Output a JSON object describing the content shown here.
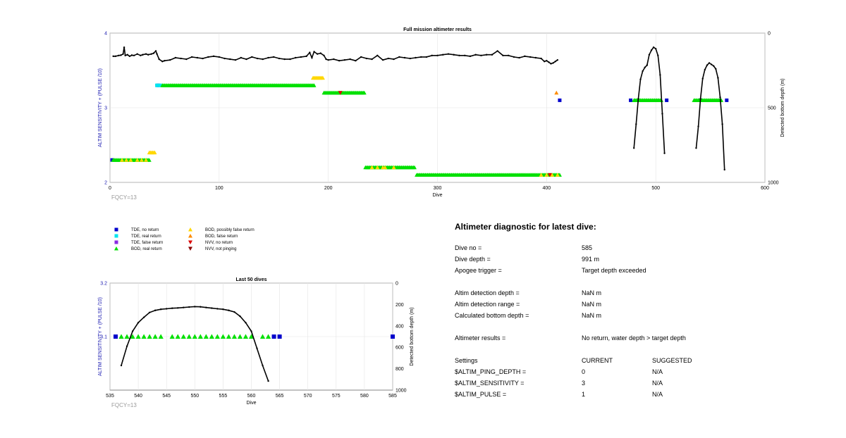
{
  "chart_data": [
    {
      "type": "scatter",
      "title": "Full mission altimeter results",
      "xlabel": "Dive",
      "ylabel": "ALTIM SENSITIVITY + (PULSE /10)",
      "y2label": "Detected bottom depth (m)",
      "xlim": [
        0,
        600
      ],
      "ylim": [
        2,
        4
      ],
      "y2lim": [
        0,
        1000
      ],
      "y2_reversed": true,
      "xticks": [
        "0",
        "100",
        "200",
        "300",
        "400",
        "500",
        "600"
      ],
      "yticks": [
        "2",
        "3",
        "4"
      ],
      "y2ticks": [
        "0",
        "500",
        "1000"
      ],
      "grid": true,
      "footnote": "FQCY=13",
      "series": [
        {
          "name": "TDE, no return",
          "color": "#0000cc",
          "marker": "square",
          "x": [
            2,
            44,
            412,
            477,
            510,
            541,
            565
          ],
          "y": [
            2.3,
            3.3,
            3.1,
            3.1,
            3.1,
            3.1,
            3.1
          ]
        },
        {
          "name": "TDE, real return",
          "color": "#00e5ee",
          "marker": "square",
          "x": [
            43,
            46
          ],
          "y": [
            3.3,
            3.3
          ]
        },
        {
          "name": "BOD, real return",
          "color": "#00e000",
          "marker": "triangle-up",
          "ranges": [
            [
              3,
              36,
              2.3
            ],
            [
              48,
              187,
              3.3
            ],
            [
              196,
              233,
              3.2
            ],
            [
              234,
              279,
              2.2
            ],
            [
              281,
              412,
              2.1
            ],
            [
              480,
              505,
              3.1
            ],
            [
              535,
              560,
              3.1
            ]
          ]
        },
        {
          "name": "BOD, possibly false return",
          "color": "#ffd700",
          "marker": "triangle-up",
          "x": [
            36,
            37,
            38,
            39,
            40,
            41,
            186,
            187,
            188,
            189,
            190,
            191,
            192,
            193,
            194,
            195,
            11,
            15,
            19,
            25,
            29,
            33,
            240,
            245,
            250,
            252,
            260,
            395,
            400,
            405,
            410
          ],
          "y": [
            2.4,
            2.4,
            2.4,
            2.4,
            2.4,
            2.4,
            3.4,
            3.4,
            3.4,
            3.4,
            3.4,
            3.4,
            3.4,
            3.4,
            3.4,
            3.4,
            2.3,
            2.3,
            2.3,
            2.3,
            2.3,
            2.3,
            2.2,
            2.2,
            2.2,
            2.2,
            2.2,
            2.1,
            2.1,
            2.1,
            2.1
          ]
        },
        {
          "name": "BOD, false return",
          "color": "#ff8c00",
          "marker": "triangle-up",
          "x": [
            409
          ],
          "y": [
            3.2
          ]
        },
        {
          "name": "NVV, no return",
          "color": "#dd0000",
          "marker": "triangle-down",
          "x": [
            211,
            403
          ],
          "y": [
            3.2,
            2.1
          ]
        },
        {
          "name": "Detected bottom depth",
          "color": "#000000",
          "marker": "dot",
          "axis": "y2",
          "x": [
            3,
            5,
            8,
            10,
            12,
            13,
            14,
            16,
            18,
            20,
            22,
            25,
            28,
            30,
            33,
            35,
            38,
            40,
            42,
            43,
            45,
            48,
            50,
            55,
            60,
            65,
            70,
            75,
            80,
            85,
            90,
            95,
            100,
            105,
            110,
            115,
            120,
            125,
            130,
            135,
            140,
            145,
            150,
            155,
            160,
            165,
            170,
            175,
            180,
            183,
            185,
            187,
            190,
            193,
            196,
            198,
            200,
            205,
            210,
            215,
            220,
            225,
            230,
            235,
            240,
            245,
            250,
            255,
            260,
            265,
            270,
            275,
            280,
            285,
            290,
            295,
            300,
            305,
            310,
            315,
            320,
            325,
            330,
            335,
            340,
            345,
            350,
            355,
            360,
            365,
            370,
            375,
            380,
            385,
            390,
            395,
            398,
            400,
            402,
            404,
            406,
            408,
            410
          ],
          "y": [
            155,
            155,
            150,
            148,
            140,
            95,
            150,
            145,
            155,
            148,
            150,
            140,
            150,
            145,
            140,
            145,
            140,
            135,
            120,
            140,
            175,
            190,
            185,
            180,
            165,
            170,
            175,
            160,
            165,
            170,
            160,
            155,
            160,
            170,
            175,
            180,
            165,
            175,
            160,
            170,
            175,
            165,
            160,
            170,
            175,
            175,
            165,
            160,
            155,
            130,
            165,
            125,
            140,
            135,
            150,
            175,
            180,
            175,
            185,
            180,
            175,
            185,
            160,
            170,
            175,
            150,
            180,
            170,
            175,
            160,
            165,
            170,
            165,
            160,
            160,
            150,
            150,
            145,
            140,
            145,
            150,
            150,
            155,
            145,
            150,
            145,
            145,
            120,
            150,
            150,
            160,
            165,
            155,
            160,
            165,
            170,
            190,
            185,
            195,
            205,
            200,
            190,
            180
          ]
        },
        {
          "name": "Detected bottom depth (last dives)",
          "color": "#000000",
          "marker": "dot",
          "axis": "y2",
          "x": [
            480,
            482,
            484,
            486,
            488,
            490,
            492,
            494,
            496,
            498,
            500,
            502,
            504,
            506,
            508,
            537,
            539,
            541,
            543,
            545,
            547,
            549,
            551,
            553,
            555,
            557,
            559,
            561,
            563
          ],
          "y": [
            770,
            610,
            440,
            310,
            255,
            230,
            215,
            145,
            115,
            95,
            105,
            150,
            280,
            540,
            805,
            770,
            625,
            440,
            305,
            245,
            215,
            200,
            210,
            220,
            240,
            300,
            430,
            610,
            915
          ]
        }
      ]
    },
    {
      "type": "scatter",
      "title": "Last 50 dives",
      "xlabel": "Dive",
      "ylabel": "ALTIM SENSITIVITY + (PULSE /10)",
      "y2label": "Detected bottom depth (m)",
      "xlim": [
        535,
        585
      ],
      "ylim": [
        3,
        3.2
      ],
      "y2lim": [
        0,
        1000
      ],
      "y2_reversed": true,
      "xticks": [
        "535",
        "540",
        "545",
        "550",
        "555",
        "560",
        "565",
        "570",
        "575",
        "580",
        "585"
      ],
      "yticks": [
        "3.1",
        "3.2"
      ],
      "y2ticks": [
        "0",
        "200",
        "400",
        "600",
        "800",
        "1000"
      ],
      "grid": true,
      "footnote": "FQCY=13",
      "series": [
        {
          "name": "TDE, no return",
          "color": "#0000cc",
          "marker": "square",
          "x": [
            536,
            564,
            565,
            585
          ],
          "y": [
            3.1,
            3.1,
            3.1,
            3.1
          ]
        },
        {
          "name": "BOD, real return",
          "color": "#00e000",
          "marker": "triangle-up",
          "x": [
            537,
            538,
            539,
            540,
            541,
            542,
            543,
            544,
            546,
            547,
            548,
            549,
            550,
            551,
            552,
            553,
            554,
            555,
            556,
            557,
            558,
            559,
            560,
            562,
            563
          ],
          "y": [
            3.1,
            3.1,
            3.1,
            3.1,
            3.1,
            3.1,
            3.1,
            3.1,
            3.1,
            3.1,
            3.1,
            3.1,
            3.1,
            3.1,
            3.1,
            3.1,
            3.1,
            3.1,
            3.1,
            3.1,
            3.1,
            3.1,
            3.1,
            3.1,
            3.1
          ]
        },
        {
          "name": "Detected bottom depth",
          "color": "#000000",
          "marker": "dot",
          "axis": "y2",
          "x": [
            537,
            538,
            539,
            540,
            541,
            542,
            543,
            544,
            545,
            546,
            547,
            548,
            549,
            550,
            551,
            552,
            553,
            554,
            555,
            556,
            557,
            558,
            559,
            560,
            561,
            562,
            563
          ],
          "y": [
            770,
            590,
            450,
            370,
            320,
            275,
            255,
            245,
            240,
            235,
            232,
            228,
            224,
            220,
            222,
            228,
            234,
            240,
            245,
            255,
            270,
            310,
            370,
            450,
            610,
            770,
            915
          ]
        }
      ]
    }
  ],
  "legend": [
    {
      "label": "TDE, no return",
      "color": "#0000cc",
      "marker": "square"
    },
    {
      "label": "TDE, real return",
      "color": "#00e5ee",
      "marker": "square"
    },
    {
      "label": "TDE, false return",
      "color": "#8a2be2",
      "marker": "square"
    },
    {
      "label": "BOD, real return",
      "color": "#00e000",
      "marker": "triangle-up"
    },
    {
      "label": "BOD, possibly false return",
      "color": "#ffd700",
      "marker": "triangle-up"
    },
    {
      "label": "BOD, false return",
      "color": "#ff8c00",
      "marker": "triangle-up"
    },
    {
      "label": "NVV, no return",
      "color": "#dd0000",
      "marker": "triangle-down"
    },
    {
      "label": "NVV, not pinging",
      "color": "#8b0000",
      "marker": "triangle-down"
    }
  ],
  "diagnostic": {
    "title": "Altimeter diagnostic for latest dive:",
    "rows": [
      {
        "label": "Dive no =",
        "value": "585"
      },
      {
        "label": "Dive depth =",
        "value": "991 m"
      },
      {
        "label": "Apogee trigger =",
        "value": "Target depth exceeded"
      },
      {
        "label": "Altim detection depth =",
        "value": "NaN m"
      },
      {
        "label": "Altim detection range =",
        "value": "NaN m"
      },
      {
        "label": "Calculated bottom depth =",
        "value": "NaN m"
      },
      {
        "label": "Altimeter results =",
        "value": "No return, water depth > target depth"
      }
    ],
    "settings_header": {
      "label": "Settings",
      "current": "CURRENT",
      "suggested": "SUGGESTED"
    },
    "settings": [
      {
        "name": "$ALTIM_PING_DEPTH =",
        "current": "0",
        "suggested": "N/A"
      },
      {
        "name": "$ALTIM_SENSITIVITY =",
        "current": "3",
        "suggested": "N/A"
      },
      {
        "name": "$ALTIM_PULSE =",
        "current": "1",
        "suggested": "N/A"
      }
    ]
  }
}
